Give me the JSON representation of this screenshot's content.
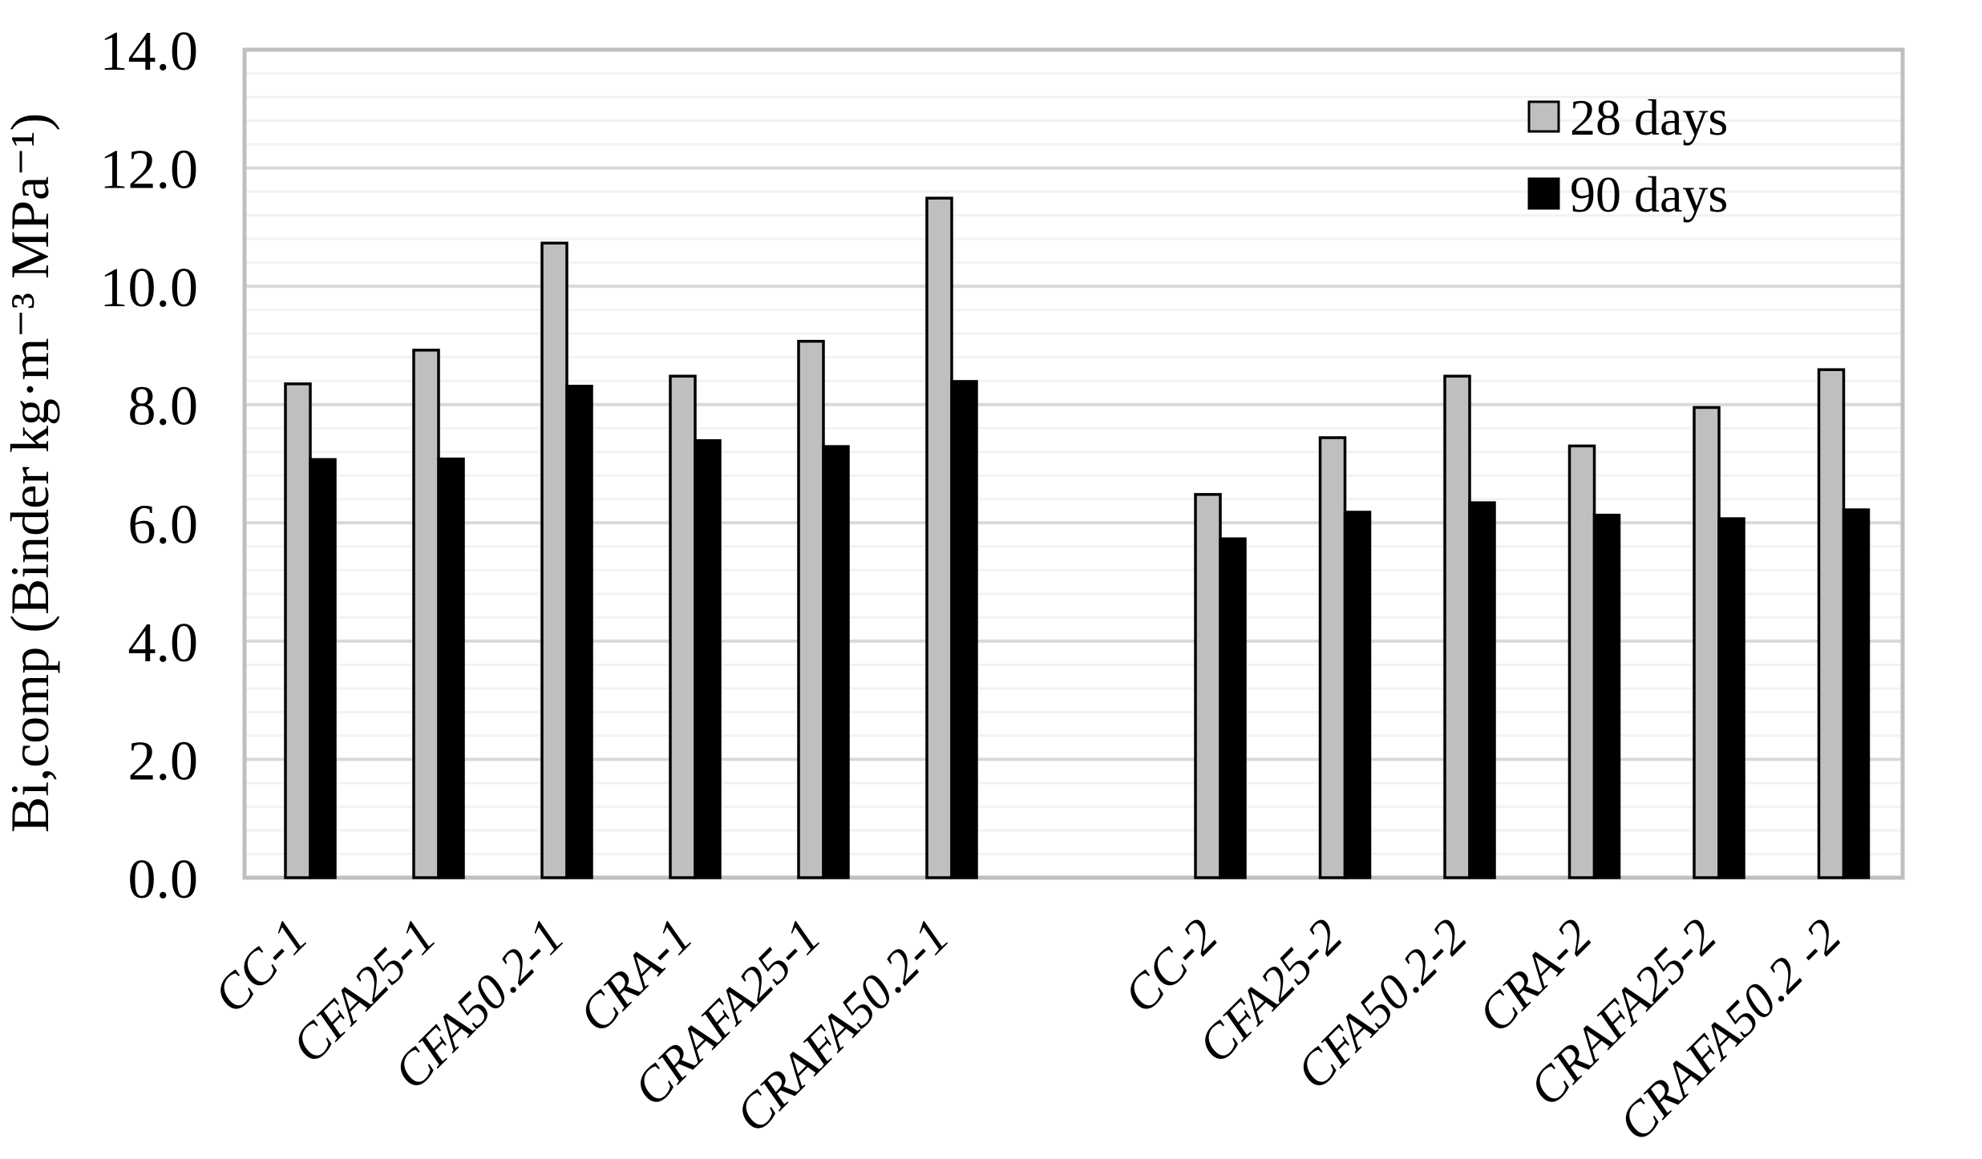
{
  "chart_data": {
    "type": "bar",
    "title": "",
    "ylabel": "Bi,comp (Binder kg·m⁻³ MPa⁻¹)",
    "xlabel": "",
    "ylim": [
      0,
      14
    ],
    "y_tick_step": 2,
    "y_minor_step": 0.4,
    "y_tick_decimals": 1,
    "grid": "horizontal major and minor gridlines on",
    "legend_position": "top-right inside plot area",
    "x_label_rotation_degrees": 45,
    "categories": [
      "CC-1",
      "CFA25-1",
      "CFA50.2-1",
      "CRA-1",
      "CRAFA25-1",
      "CRAFA50.2-1",
      "CC-2",
      "CFA25-2",
      "CFA50.2-2",
      "CRA-2",
      "CRAFA25-2",
      "CRAFA50.2 -2"
    ],
    "series": [
      {
        "name": "28 days",
        "color": "#bfbfbf",
        "values": [
          8.35,
          8.92,
          10.73,
          8.48,
          9.07,
          11.49,
          6.48,
          7.44,
          8.48,
          7.3,
          7.95,
          8.59
        ]
      },
      {
        "name": "90 days",
        "color": "#000000",
        "values": [
          7.07,
          7.08,
          8.31,
          7.39,
          7.29,
          8.39,
          5.73,
          6.18,
          6.34,
          6.13,
          6.07,
          6.22
        ]
      }
    ],
    "colors": {
      "bar_outline": "#000000",
      "major_gridline": "#d9d9d9",
      "minor_gridline": "#f2f2f2",
      "plot_border": "#bfbfbf",
      "text": "#000000",
      "background": "#ffffff"
    }
  }
}
